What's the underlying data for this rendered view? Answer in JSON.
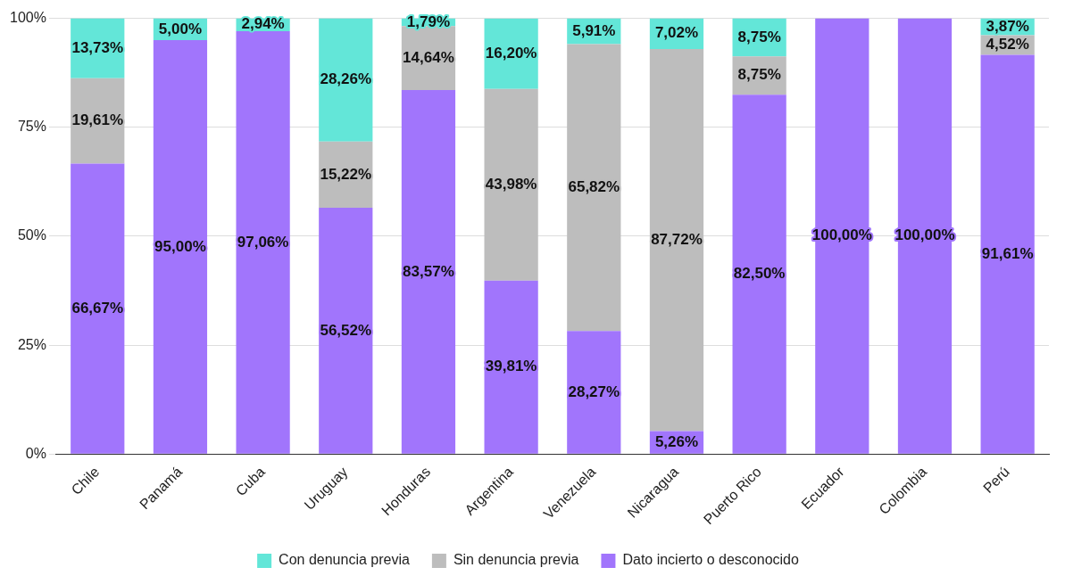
{
  "chart_data": {
    "type": "bar",
    "stacked": true,
    "categories": [
      "Chile",
      "Panamá",
      "Cuba",
      "Uruguay",
      "Honduras",
      "Argentina",
      "Venezuela",
      "Nicaragua",
      "Puerto Rico",
      "Ecuador",
      "Colombia",
      "Perú"
    ],
    "series": [
      {
        "name": "Dato incierto o desconocido",
        "color": "#a175fc",
        "values": [
          66.67,
          95.0,
          97.06,
          56.52,
          83.57,
          39.81,
          28.27,
          5.26,
          82.5,
          100,
          100,
          91.61
        ],
        "value_labels": [
          "66,67%",
          "95,00%",
          "97,06%",
          "56,52%",
          "83,57%",
          "39,81%",
          "28,27%",
          "5,26%",
          "82,50%",
          "100,00%",
          "100,00%",
          "91,61%"
        ]
      },
      {
        "name": "Sin denuncia previa",
        "color": "#bdbdbd",
        "values": [
          19.61,
          0,
          0,
          15.22,
          14.64,
          43.98,
          65.82,
          87.72,
          8.75,
          0,
          0,
          4.52
        ],
        "value_labels": [
          "19,61%",
          null,
          null,
          "15,22%",
          "14,64%",
          "43,98%",
          "65,82%",
          "87,72%",
          "8,75%",
          null,
          null,
          "4,52%"
        ]
      },
      {
        "name": "Con denuncia previa",
        "color": "#63e6d8",
        "values": [
          13.73,
          5.0,
          2.94,
          28.26,
          1.79,
          16.2,
          5.91,
          7.02,
          8.75,
          0,
          0,
          3.87
        ],
        "value_labels": [
          "13,73%",
          "5,00%",
          "2,94%",
          "28,26%",
          "1,79%",
          "16,20%",
          "5,91%",
          "7,02%",
          "8,75%",
          null,
          null,
          "3,87%"
        ]
      }
    ],
    "ylim": [
      0,
      100
    ],
    "yticks": [
      {
        "value": 0,
        "label": "0%"
      },
      {
        "value": 25,
        "label": "25%"
      },
      {
        "value": 50,
        "label": "50%"
      },
      {
        "value": 75,
        "label": "75%"
      },
      {
        "value": 100,
        "label": "100%"
      }
    ],
    "grid": "y",
    "legend": "bottom"
  }
}
